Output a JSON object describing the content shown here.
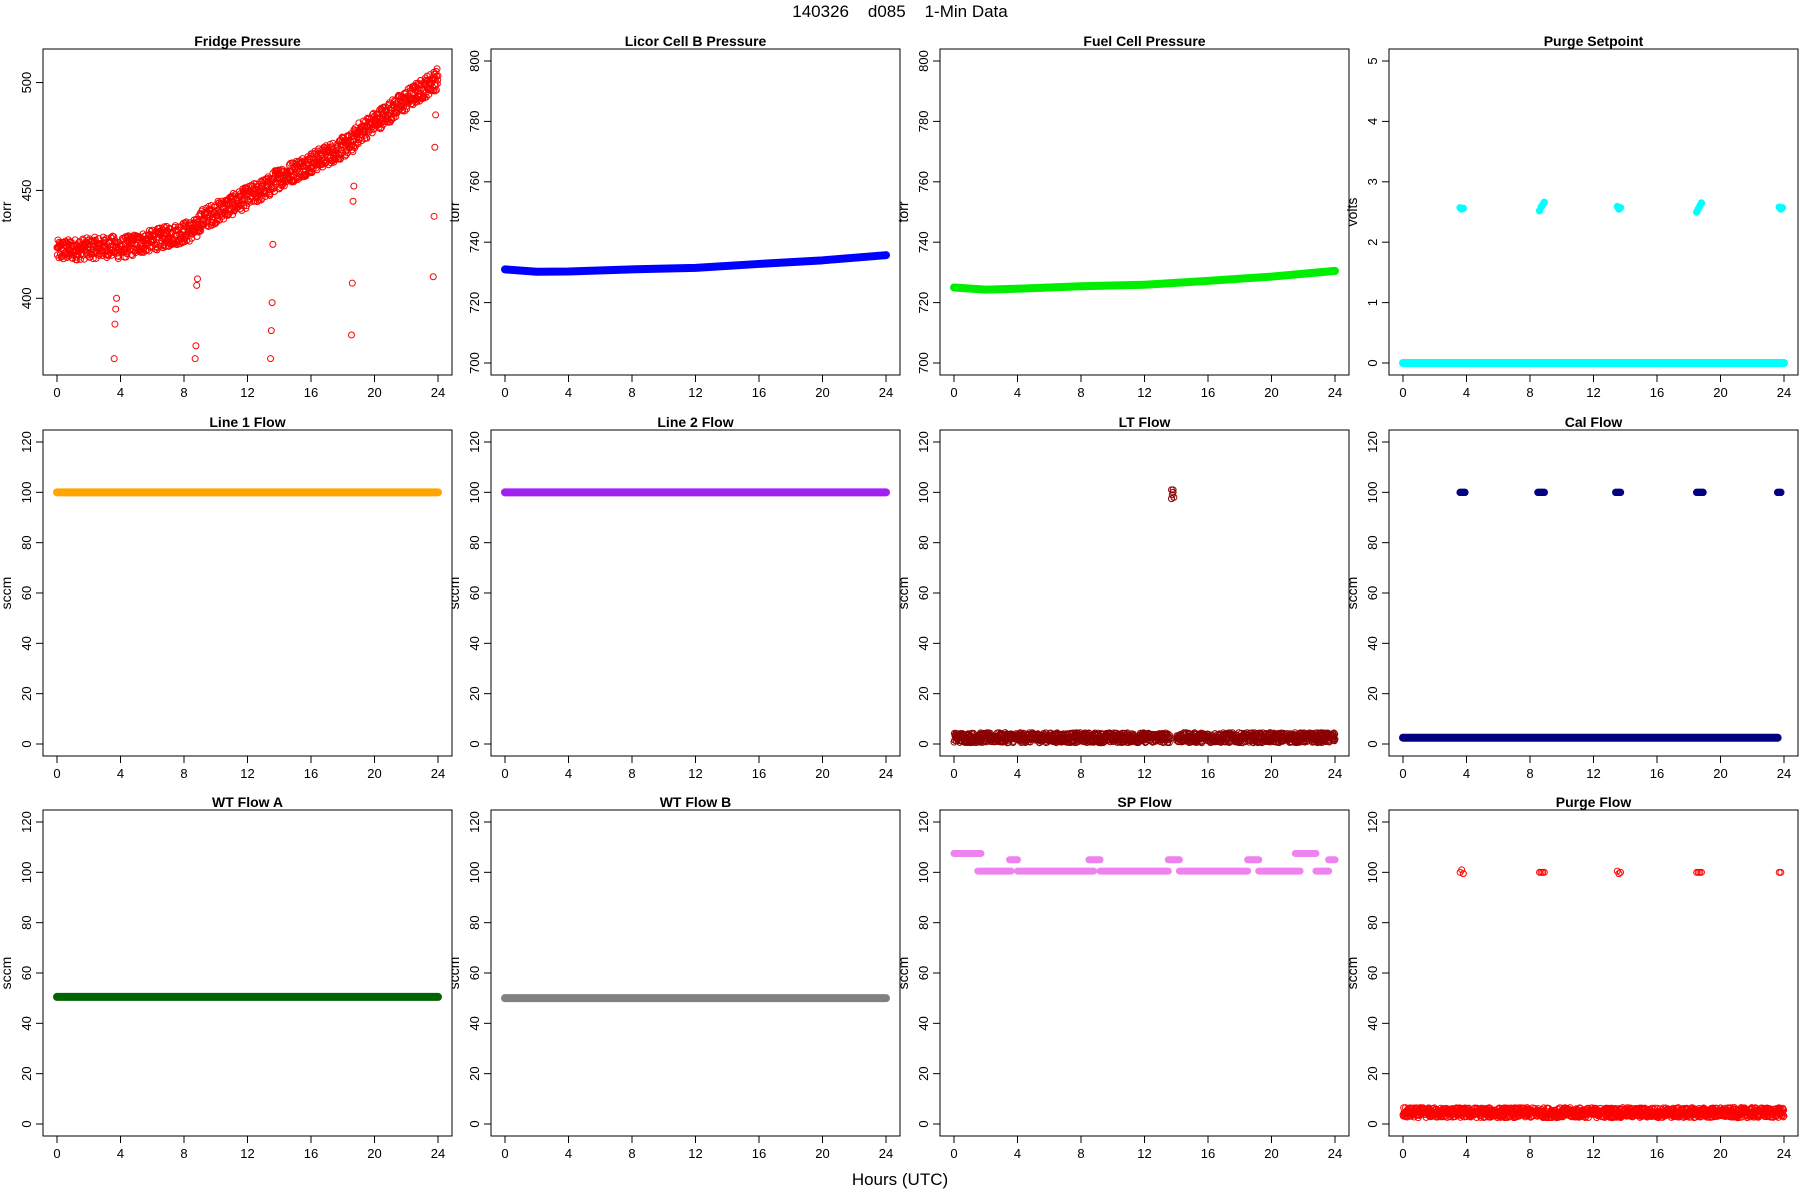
{
  "figure": {
    "title": "140326    d085    1-Min Data",
    "xlabel": "Hours (UTC)"
  },
  "chart_data": [
    {
      "type": "scatter",
      "title": "Fridge Pressure",
      "ylabel": "torr",
      "xlim": [
        0,
        24
      ],
      "ylim": [
        370,
        510
      ],
      "xticks": [
        0,
        4,
        8,
        12,
        16,
        20,
        24
      ],
      "yticks": [
        400,
        450,
        500
      ],
      "color": "#ff0000",
      "open_circles": true,
      "series": [
        {
          "kind": "band",
          "x": [
            0,
            3.5,
            3.9,
            8.8,
            9.0,
            13.4,
            13.8,
            18.6,
            18.9,
            24.0
          ],
          "y": [
            422,
            424,
            423,
            432,
            436,
            452,
            455,
            472,
            476,
            502
          ],
          "spread": 5
        },
        {
          "kind": "points",
          "x": [
            3.6,
            3.7,
            3.65,
            3.75,
            8.7,
            8.8,
            8.75,
            8.85,
            13.45,
            13.5,
            13.55,
            13.6,
            18.55,
            18.6,
            18.65,
            18.7,
            23.7,
            23.75,
            23.8,
            23.85
          ],
          "y": [
            372,
            395,
            388,
            400,
            372,
            406,
            378,
            409,
            372,
            385,
            398,
            425,
            383,
            407,
            445,
            452,
            410,
            438,
            470,
            485
          ]
        }
      ]
    },
    {
      "type": "scatter",
      "title": "Licor Cell B Pressure",
      "ylabel": "torr",
      "xlim": [
        0,
        24
      ],
      "ylim": [
        700,
        800
      ],
      "xticks": [
        0,
        4,
        8,
        12,
        16,
        20,
        24
      ],
      "yticks": [
        700,
        720,
        740,
        760,
        780,
        800
      ],
      "color": "#0000ff",
      "open_circles": false,
      "series": [
        {
          "kind": "line",
          "x": [
            0,
            2,
            4,
            8,
            12,
            16,
            20,
            24
          ],
          "y": [
            731,
            730.2,
            730.3,
            731,
            731.5,
            732.8,
            734,
            735.7
          ]
        }
      ]
    },
    {
      "type": "scatter",
      "title": "Fuel Cell Pressure",
      "ylabel": "torr",
      "xlim": [
        0,
        24
      ],
      "ylim": [
        700,
        800
      ],
      "xticks": [
        0,
        4,
        8,
        12,
        16,
        20,
        24
      ],
      "yticks": [
        700,
        720,
        740,
        760,
        780,
        800
      ],
      "color": "#00ee00",
      "open_circles": false,
      "series": [
        {
          "kind": "line",
          "x": [
            0,
            2,
            4,
            8,
            12,
            16,
            20,
            24
          ],
          "y": [
            725,
            724.3,
            724.6,
            725.4,
            725.9,
            727.2,
            728.6,
            730.5
          ]
        }
      ]
    },
    {
      "type": "scatter",
      "title": "Purge Setpoint",
      "ylabel": "volts",
      "xlim": [
        0,
        24
      ],
      "ylim": [
        0,
        5
      ],
      "xticks": [
        0,
        4,
        8,
        12,
        16,
        20,
        24
      ],
      "yticks": [
        0,
        1,
        2,
        3,
        4,
        5
      ],
      "color": "#00ffff",
      "open_circles": false,
      "series": [
        {
          "kind": "line",
          "x": [
            0,
            24
          ],
          "y": [
            0,
            0
          ]
        },
        {
          "kind": "points",
          "x": [
            3.6,
            3.7,
            3.8,
            8.6,
            8.7,
            8.8,
            8.9,
            13.5,
            13.6,
            13.7,
            18.5,
            18.6,
            18.7,
            18.8,
            23.7,
            23.8,
            23.9
          ],
          "y": [
            2.57,
            2.55,
            2.56,
            2.52,
            2.58,
            2.62,
            2.66,
            2.59,
            2.55,
            2.57,
            2.5,
            2.55,
            2.6,
            2.65,
            2.58,
            2.55,
            2.57
          ]
        }
      ]
    },
    {
      "type": "scatter",
      "title": "Line 1 Flow",
      "ylabel": "sccm",
      "xlim": [
        0,
        24
      ],
      "ylim": [
        0,
        120
      ],
      "xticks": [
        0,
        4,
        8,
        12,
        16,
        20,
        24
      ],
      "yticks": [
        0,
        20,
        40,
        60,
        80,
        100,
        120
      ],
      "color": "#ffa500",
      "open_circles": false,
      "series": [
        {
          "kind": "line",
          "x": [
            0,
            24
          ],
          "y": [
            100,
            100
          ]
        }
      ]
    },
    {
      "type": "scatter",
      "title": "Line 2 Flow",
      "ylabel": "sccm",
      "xlim": [
        0,
        24
      ],
      "ylim": [
        0,
        120
      ],
      "xticks": [
        0,
        4,
        8,
        12,
        16,
        20,
        24
      ],
      "yticks": [
        0,
        20,
        40,
        60,
        80,
        100,
        120
      ],
      "color": "#a020f0",
      "open_circles": false,
      "series": [
        {
          "kind": "line",
          "x": [
            0,
            24
          ],
          "y": [
            100,
            100
          ]
        }
      ]
    },
    {
      "type": "scatter",
      "title": "LT Flow",
      "ylabel": "sccm",
      "xlim": [
        0,
        24
      ],
      "ylim": [
        0,
        120
      ],
      "xticks": [
        0,
        4,
        8,
        12,
        16,
        20,
        24
      ],
      "yticks": [
        0,
        20,
        40,
        60,
        80,
        100,
        120
      ],
      "color": "#8b0000",
      "open_circles": true,
      "series": [
        {
          "kind": "band",
          "x": [
            0,
            13.6
          ],
          "y": [
            2.5,
            2.5
          ],
          "spread": 2
        },
        {
          "kind": "band",
          "x": [
            14.0,
            24
          ],
          "y": [
            2.5,
            2.5
          ],
          "spread": 2
        },
        {
          "kind": "points",
          "x": [
            13.7,
            13.8,
            13.75,
            13.85,
            13.7,
            13.8
          ],
          "y": [
            101,
            101,
            99,
            98,
            97.5,
            100
          ]
        }
      ]
    },
    {
      "type": "scatter",
      "title": "Cal Flow",
      "ylabel": "sccm",
      "xlim": [
        0,
        24
      ],
      "ylim": [
        0,
        120
      ],
      "xticks": [
        0,
        4,
        8,
        12,
        16,
        20,
        24
      ],
      "yticks": [
        0,
        20,
        40,
        60,
        80,
        100,
        120
      ],
      "color": "#000080",
      "open_circles": false,
      "series": [
        {
          "kind": "line",
          "x": [
            0,
            23.6
          ],
          "y": [
            2.5,
            2.5
          ]
        },
        {
          "kind": "points",
          "x": [
            3.6,
            3.7,
            3.8,
            3.9,
            8.5,
            8.6,
            8.7,
            8.8,
            8.9,
            13.4,
            13.5,
            13.6,
            13.7,
            18.5,
            18.6,
            18.7,
            18.8,
            18.9,
            23.6,
            23.7,
            23.8
          ],
          "y": [
            100,
            100,
            100,
            100,
            100,
            100,
            100,
            100,
            100,
            100,
            100,
            100,
            100,
            100,
            100,
            100,
            100,
            100,
            100,
            100,
            100
          ]
        }
      ]
    },
    {
      "type": "scatter",
      "title": "WT Flow A",
      "ylabel": "sccm",
      "xlim": [
        0,
        24
      ],
      "ylim": [
        0,
        120
      ],
      "xticks": [
        0,
        4,
        8,
        12,
        16,
        20,
        24
      ],
      "yticks": [
        0,
        20,
        40,
        60,
        80,
        100,
        120
      ],
      "color": "#006400",
      "open_circles": false,
      "series": [
        {
          "kind": "line",
          "x": [
            0,
            24
          ],
          "y": [
            50.5,
            50.5
          ]
        }
      ]
    },
    {
      "type": "scatter",
      "title": "WT Flow B",
      "ylabel": "sccm",
      "xlim": [
        0,
        24
      ],
      "ylim": [
        0,
        120
      ],
      "xticks": [
        0,
        4,
        8,
        12,
        16,
        20,
        24
      ],
      "yticks": [
        0,
        20,
        40,
        60,
        80,
        100,
        120
      ],
      "color": "#808080",
      "open_circles": false,
      "series": [
        {
          "kind": "line",
          "x": [
            0,
            24
          ],
          "y": [
            50,
            50
          ]
        }
      ]
    },
    {
      "type": "scatter",
      "title": "SP Flow",
      "ylabel": "sccm",
      "xlim": [
        0,
        24
      ],
      "ylim": [
        0,
        120
      ],
      "xticks": [
        0,
        4,
        8,
        12,
        16,
        20,
        24
      ],
      "yticks": [
        0,
        20,
        40,
        60,
        80,
        100,
        120
      ],
      "color": "#ee82ee",
      "open_circles": false,
      "series": [
        {
          "kind": "segments",
          "segments": [
            [
              0,
              1.7,
              107.5
            ],
            [
              1.5,
              3.6,
              100.5
            ],
            [
              3.5,
              4.0,
              105
            ],
            [
              4.0,
              8.8,
              100.5
            ],
            [
              8.5,
              9.2,
              105
            ],
            [
              9.2,
              13.5,
              100.5
            ],
            [
              13.5,
              14.2,
              105
            ],
            [
              14.2,
              18.5,
              100.5
            ],
            [
              18.5,
              19.2,
              105
            ],
            [
              19.2,
              21.8,
              100.5
            ],
            [
              21.5,
              22.8,
              107.5
            ],
            [
              22.8,
              23.6,
              100.5
            ],
            [
              23.6,
              24,
              105
            ]
          ]
        }
      ]
    },
    {
      "type": "scatter",
      "title": "Purge Flow",
      "ylabel": "sccm",
      "xlim": [
        0,
        24
      ],
      "ylim": [
        0,
        120
      ],
      "xticks": [
        0,
        4,
        8,
        12,
        16,
        20,
        24
      ],
      "yticks": [
        0,
        20,
        40,
        60,
        80,
        100,
        120
      ],
      "color": "#ff0000",
      "open_circles": true,
      "series": [
        {
          "kind": "band",
          "x": [
            0,
            24
          ],
          "y": [
            4.5,
            4.5
          ],
          "spread": 2
        },
        {
          "kind": "points",
          "x": [
            3.6,
            3.7,
            3.8,
            8.6,
            8.7,
            8.8,
            8.9,
            13.5,
            13.6,
            13.7,
            18.5,
            18.6,
            18.7,
            18.8,
            23.7,
            23.8
          ],
          "y": [
            100,
            101,
            99.5,
            100,
            100,
            100,
            100,
            100.5,
            99.5,
            100,
            100,
            100,
            100,
            100,
            100,
            100
          ]
        }
      ]
    }
  ]
}
